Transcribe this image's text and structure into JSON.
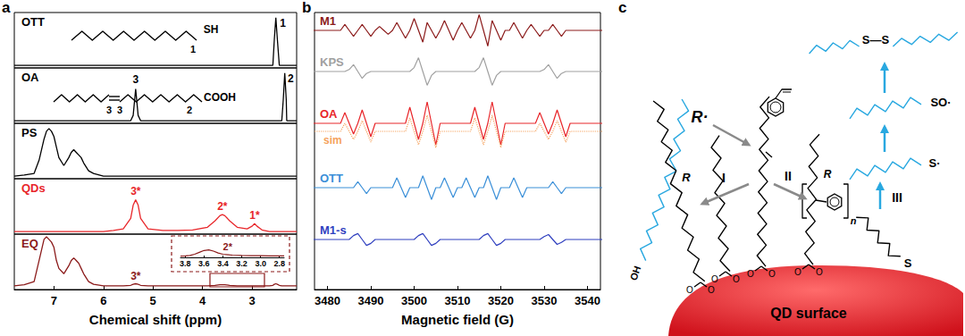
{
  "chart_data": [
    {
      "type": "line",
      "title": "a",
      "x_label": "Chemical shift (ppm)",
      "x": [
        7.8,
        7.6,
        7.4,
        7.3,
        7.2,
        7.15,
        7.1,
        7.05,
        7.0,
        6.95,
        6.9,
        6.8,
        6.7,
        6.65,
        6.6,
        6.55,
        6.5,
        6.45,
        6.4,
        6.3,
        6.2,
        6.0,
        5.8,
        5.6,
        5.45,
        5.4,
        5.35,
        5.3,
        5.25,
        5.1,
        4.8,
        4.5,
        4.2,
        3.9,
        3.75,
        3.65,
        3.6,
        3.55,
        3.45,
        3.3,
        3.1,
        3.0,
        2.95,
        2.9,
        2.8,
        2.65,
        2.58,
        2.55,
        2.52,
        2.49,
        2.45,
        2.4,
        2.37,
        2.34,
        2.31,
        2.3,
        2.2,
        2.1
      ],
      "xlim": [
        7.8,
        2.1
      ],
      "xticks": [
        7,
        6,
        5,
        4,
        3
      ],
      "ylim": [
        -0.05,
        1
      ],
      "tick_labels": "x",
      "series": [
        {
          "name": "OTT",
          "color": "#000000",
          "values": [
            0,
            0,
            0,
            0,
            0,
            0,
            0,
            0,
            0,
            0,
            0,
            0,
            0,
            0,
            0,
            0,
            0,
            0,
            0,
            0,
            0,
            0,
            0,
            0,
            0,
            0,
            0,
            0,
            0,
            0,
            0,
            0,
            0,
            0,
            0,
            0,
            0,
            0,
            0,
            0,
            0,
            0,
            0,
            0,
            0,
            0,
            0,
            0.5,
            0.9,
            0.5,
            0,
            0,
            0,
            0,
            0,
            0,
            0,
            0
          ]
        },
        {
          "name": "OA",
          "color": "#000000",
          "values": [
            0,
            0,
            0,
            0,
            0,
            0,
            0,
            0,
            0,
            0,
            0,
            0,
            0,
            0,
            0,
            0,
            0,
            0,
            0,
            0,
            0,
            0,
            0,
            0,
            0,
            0.1,
            0.6,
            0.1,
            0,
            0,
            0,
            0,
            0,
            0,
            0,
            0,
            0,
            0,
            0,
            0,
            0,
            0,
            0,
            0,
            0,
            0,
            0,
            0,
            0,
            0,
            0,
            0,
            0.4,
            0.9,
            0.4,
            0,
            0,
            0
          ]
        },
        {
          "name": "PS",
          "color": "#000000",
          "values": [
            0,
            0.02,
            0.05,
            0.3,
            0.7,
            0.85,
            0.9,
            0.85,
            0.75,
            0.55,
            0.35,
            0.2,
            0.35,
            0.45,
            0.5,
            0.45,
            0.4,
            0.35,
            0.25,
            0.1,
            0.05,
            0,
            0,
            0,
            0,
            0,
            0,
            0,
            0,
            0,
            0,
            0,
            0,
            0,
            0,
            0,
            0,
            0,
            0,
            0,
            0,
            0,
            0,
            0,
            0,
            0,
            0,
            0,
            0,
            0,
            0,
            0,
            0,
            0,
            0,
            0,
            0,
            0
          ]
        },
        {
          "name": "QDs",
          "color": "#e8262a",
          "values": [
            0,
            0,
            0,
            0,
            0,
            0,
            0,
            0,
            0,
            0,
            0,
            0,
            0,
            0,
            0,
            0,
            0,
            0,
            0,
            0,
            0,
            0,
            0.02,
            0.05,
            0.25,
            0.5,
            0.6,
            0.5,
            0.25,
            0.05,
            0.02,
            0.02,
            0.03,
            0.08,
            0.2,
            0.3,
            0.32,
            0.3,
            0.2,
            0.08,
            0.05,
            0.1,
            0.15,
            0.1,
            0.03,
            0,
            0,
            0,
            0,
            0,
            0,
            0,
            0,
            0,
            0,
            0,
            0,
            0
          ]
        },
        {
          "name": "EQ",
          "color": "#8b1a1a",
          "values": [
            0.02,
            0.04,
            0.1,
            0.5,
            0.9,
            0.95,
            0.9,
            0.85,
            0.75,
            0.5,
            0.35,
            0.25,
            0.4,
            0.5,
            0.55,
            0.5,
            0.45,
            0.35,
            0.25,
            0.1,
            0.05,
            0.02,
            0.02,
            0.02,
            0.03,
            0.05,
            0.06,
            0.05,
            0.03,
            0.02,
            0.02,
            0.02,
            0.02,
            0.02,
            0.03,
            0.04,
            0.04,
            0.04,
            0.03,
            0.02,
            0.02,
            0.02,
            0.02,
            0.02,
            0.02,
            0.02,
            0.03,
            0.05,
            0.06,
            0.05,
            0.03,
            0.02,
            0.02,
            0.02,
            0.02,
            0.02,
            0.02,
            0.02
          ]
        }
      ],
      "annotations": [
        {
          "text": "1",
          "series": "OTT",
          "x": 2.38,
          "y": 0.7
        },
        {
          "text": "3",
          "series": "OA",
          "x": 5.35,
          "y": 0.68
        },
        {
          "text": "2",
          "series": "OA",
          "x": 2.22,
          "y": 0.7
        },
        {
          "text": "3*",
          "series": "QDs",
          "x": 5.35,
          "y": 0.66
        },
        {
          "text": "2*",
          "series": "QDs",
          "x": 3.6,
          "y": 0.38
        },
        {
          "text": "1*",
          "series": "QDs",
          "x": 2.95,
          "y": 0.2
        },
        {
          "text": "3*",
          "series": "EQ",
          "x": 5.35,
          "y": 0.1
        }
      ],
      "structures": [
        {
          "series": "OTT",
          "groups": [
            "SH"
          ],
          "labels": [
            "1"
          ]
        },
        {
          "series": "OA",
          "groups": [
            "COOH"
          ],
          "labels": [
            "3",
            "3",
            "2"
          ]
        }
      ]
    },
    {
      "type": "line",
      "color": "#8b1a1a",
      "x": [
        3.85,
        3.8,
        3.75,
        3.7,
        3.65,
        3.6,
        3.55,
        3.5,
        3.45,
        3.4,
        3.3,
        3.2,
        3.1,
        3.0,
        2.9,
        2.8,
        2.75
      ],
      "values": [
        0.1,
        0.12,
        0.15,
        0.25,
        0.4,
        0.55,
        0.6,
        0.5,
        0.35,
        0.25,
        0.18,
        0.15,
        0.14,
        0.13,
        0.12,
        0.12,
        0.12
      ],
      "xlim": [
        3.85,
        2.75
      ],
      "xticks": [
        3.8,
        3.6,
        3.4,
        3.2,
        {
          "value": 3,
          "label": "3.0"
        },
        2.8
      ],
      "ylim": [
        0,
        1
      ],
      "tick_labels": "x",
      "annotations": [
        {
          "text": "2*",
          "x": 3.35,
          "y": 0.45
        }
      ]
    },
    {
      "type": "line",
      "title": "b",
      "x_label": "Magnetic field (G)",
      "x": [
        3476,
        3477,
        3478,
        3479,
        3480,
        3481,
        3482,
        3483,
        3484,
        3485,
        3486,
        3487,
        3488,
        3489,
        3490,
        3491,
        3492,
        3493,
        3494,
        3495,
        3496,
        3497,
        3498,
        3499,
        3500,
        3501,
        3502,
        3503,
        3504,
        3505,
        3506,
        3507,
        3508,
        3509,
        3510,
        3511,
        3512,
        3513,
        3514,
        3515,
        3516,
        3517,
        3518,
        3519,
        3520,
        3521,
        3522,
        3523,
        3524,
        3525,
        3526,
        3527,
        3528,
        3529,
        3530,
        3531,
        3532,
        3533,
        3534,
        3535,
        3536,
        3537,
        3538,
        3539,
        3540,
        3541,
        3542,
        3543,
        3544
      ],
      "xlim": [
        3477,
        3543
      ],
      "xticks": [
        3480,
        3490,
        3500,
        3510,
        3520,
        3530,
        3540
      ],
      "ylim": [
        -1,
        1
      ],
      "tick_labels": "x",
      "series": [
        {
          "name": "M1",
          "color": "#8b1a1a",
          "values": [
            0,
            0,
            0,
            0,
            0,
            0,
            0,
            0,
            0.3,
            0,
            -0.3,
            0,
            0.3,
            0,
            -0.3,
            0,
            0.2,
            0,
            -0.2,
            0,
            0.4,
            0,
            -0.4,
            0,
            0.6,
            0,
            -0.6,
            0.4,
            0,
            -0.4,
            0,
            0.5,
            0,
            -0.5,
            0,
            0.4,
            0,
            -0.4,
            0,
            0.8,
            0,
            -0.8,
            0.5,
            0,
            -0.5,
            0,
            0,
            0.4,
            0,
            -0.4,
            0,
            0.3,
            0,
            -0.3,
            0,
            0,
            0.3,
            0,
            -0.3,
            0,
            0,
            0,
            0,
            0,
            0,
            0,
            0,
            0,
            0
          ]
        },
        {
          "name": "KPS",
          "color": "#a0a0a0",
          "values": [
            0,
            0,
            0,
            0,
            0,
            0,
            0,
            0,
            0,
            0.1,
            0.35,
            0,
            -0.35,
            -0.1,
            0,
            0,
            0,
            0,
            0,
            0,
            0,
            0,
            0,
            0,
            0.2,
            0.7,
            0,
            -0.7,
            -0.2,
            0,
            0,
            0,
            0,
            0,
            0,
            0,
            0,
            0,
            0,
            0.2,
            0.7,
            0,
            -0.7,
            -0.2,
            0,
            0,
            0,
            0,
            0,
            0,
            0,
            0,
            0,
            0,
            0.1,
            0.35,
            0,
            -0.35,
            -0.1,
            0,
            0,
            0,
            0,
            0,
            0,
            0,
            0,
            0,
            0
          ]
        },
        {
          "name": "OA",
          "color": "#e8262a",
          "values": [
            0,
            0,
            0,
            0,
            0,
            0,
            0,
            0,
            0.4,
            0,
            -0.4,
            0,
            0.5,
            0,
            -0.5,
            0,
            0,
            0,
            0,
            0,
            0,
            0,
            0,
            0.6,
            0,
            -0.6,
            0,
            0.8,
            0,
            -0.8,
            0,
            0,
            0,
            0,
            0,
            0,
            0,
            0,
            0.6,
            0,
            -0.6,
            0,
            0.8,
            0,
            -0.8,
            0,
            0,
            0,
            0,
            0,
            0,
            0,
            0,
            0.4,
            0,
            -0.4,
            0,
            0.5,
            0,
            -0.5,
            0,
            0,
            0,
            0,
            0,
            0,
            0,
            0,
            0
          ]
        },
        {
          "name": "sim",
          "color": "#f5a25d",
          "line_style": "dotted",
          "values": [
            -0.3,
            -0.3,
            -0.3,
            -0.3,
            -0.3,
            -0.3,
            -0.3,
            -0.3,
            0,
            -0.3,
            -0.6,
            -0.3,
            0.1,
            -0.3,
            -0.7,
            -0.3,
            -0.3,
            -0.3,
            -0.3,
            -0.3,
            -0.3,
            -0.3,
            -0.3,
            0.2,
            -0.3,
            -0.8,
            -0.3,
            0.3,
            -0.3,
            -0.9,
            -0.3,
            -0.3,
            -0.3,
            -0.3,
            -0.3,
            -0.3,
            -0.3,
            -0.3,
            0.2,
            -0.3,
            -0.8,
            -0.3,
            0.3,
            -0.3,
            -0.9,
            -0.3,
            -0.3,
            -0.3,
            -0.3,
            -0.3,
            -0.3,
            -0.3,
            -0.3,
            0,
            -0.3,
            -0.6,
            -0.3,
            0.1,
            -0.3,
            -0.7,
            -0.3,
            -0.3,
            -0.3,
            -0.3,
            -0.3,
            -0.3,
            -0.3,
            -0.3,
            -0.3
          ]
        },
        {
          "name": "OTT",
          "color": "#3a8fd8",
          "values": [
            0,
            0,
            0,
            0,
            0,
            0,
            0,
            0,
            0,
            0,
            0,
            0.3,
            0,
            -0.3,
            0,
            0,
            0,
            0,
            0,
            0,
            0.5,
            0,
            -0.5,
            0,
            0,
            0,
            0.6,
            0,
            -0.6,
            0,
            0,
            0.5,
            0,
            -0.5,
            0,
            0,
            0.5,
            0,
            -0.5,
            0,
            0,
            0.6,
            0,
            -0.6,
            0,
            0,
            0,
            0.5,
            0,
            -0.5,
            0,
            0,
            0,
            0,
            0,
            0,
            0.3,
            0,
            -0.3,
            0,
            0,
            0,
            0,
            0,
            0,
            0,
            0,
            0,
            0
          ]
        },
        {
          "name": "M1-s",
          "color": "#2f3fbf",
          "values": [
            0,
            0,
            0,
            0,
            0,
            0,
            0,
            0,
            0,
            0,
            0.2,
            0.3,
            0,
            -0.3,
            -0.2,
            0,
            0,
            0,
            0,
            0,
            0,
            0,
            0,
            0,
            0,
            0.2,
            0.3,
            0,
            -0.3,
            -0.2,
            0,
            0,
            0,
            0,
            0,
            0,
            0,
            0,
            0,
            0,
            0.2,
            0.3,
            0,
            -0.3,
            -0.2,
            0,
            0,
            0,
            0,
            0,
            0,
            0,
            0,
            0,
            0.15,
            0.25,
            0,
            -0.25,
            -0.15,
            0,
            0,
            0,
            0,
            0,
            0,
            0,
            0,
            0,
            0
          ]
        }
      ]
    }
  ],
  "diagram": {
    "title": "c",
    "surface": "QD surface",
    "radical": "R·",
    "pathways": [
      "I",
      "II",
      "III"
    ],
    "crosslink": {
      "end_group": "OH",
      "radical_end": "R"
    },
    "ligand_head": [
      "O",
      "O"
    ],
    "polymer": {
      "repeat": "n",
      "end": "R"
    },
    "thiol": {
      "anchor": "S",
      "products": [
        "S·",
        "SO·",
        "S—S"
      ]
    }
  }
}
